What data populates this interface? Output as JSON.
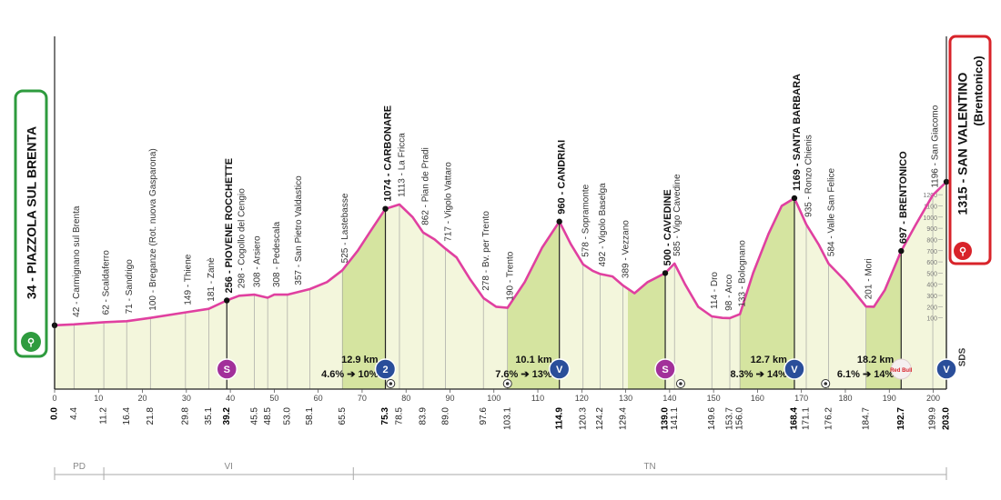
{
  "chart_data": {
    "type": "area",
    "title": "",
    "xlabel": "",
    "ylabel": "",
    "xlim": [
      0,
      203
    ],
    "ylim": [
      0,
      1315
    ],
    "colors": {
      "profile_fill": "#f3f6dc",
      "climb_fill": "#d5e4a0",
      "profile_line": "#e040a0",
      "start_green": "#2e9b3e",
      "finish_red": "#d8232a",
      "marker_purple": "#a2309a",
      "marker_blue": "#2a4e9a"
    },
    "start": {
      "label": "34 - PIAZZOLA SUL BRENTA",
      "km": 0,
      "alt": 34
    },
    "finish": {
      "label": "1315 - SAN VALENTINO",
      "sublabel": "(Brentonico)",
      "km": 203,
      "alt": 1315
    },
    "profile": [
      [
        0,
        34
      ],
      [
        4.4,
        42
      ],
      [
        11.2,
        62
      ],
      [
        16.4,
        71
      ],
      [
        21.8,
        100
      ],
      [
        29.8,
        149
      ],
      [
        35.1,
        181
      ],
      [
        39.2,
        256
      ],
      [
        42,
        298
      ],
      [
        45.5,
        308
      ],
      [
        48.5,
        280
      ],
      [
        50,
        308
      ],
      [
        53,
        308
      ],
      [
        58.1,
        357
      ],
      [
        62,
        420
      ],
      [
        65.5,
        525
      ],
      [
        69,
        700
      ],
      [
        72,
        880
      ],
      [
        75.3,
        1074
      ],
      [
        78.5,
        1113
      ],
      [
        81.5,
        1000
      ],
      [
        83.9,
        862
      ],
      [
        86.5,
        800
      ],
      [
        89,
        717
      ],
      [
        91.5,
        640
      ],
      [
        94.5,
        450
      ],
      [
        97.6,
        278
      ],
      [
        100.5,
        200
      ],
      [
        103.1,
        190
      ],
      [
        107,
        420
      ],
      [
        111,
        730
      ],
      [
        114.9,
        960
      ],
      [
        117.5,
        760
      ],
      [
        120.3,
        578
      ],
      [
        122.5,
        520
      ],
      [
        124.2,
        492
      ],
      [
        127,
        470
      ],
      [
        129.4,
        389
      ],
      [
        132,
        320
      ],
      [
        135,
        420
      ],
      [
        139,
        500
      ],
      [
        141.1,
        585
      ],
      [
        143.5,
        400
      ],
      [
        146.5,
        200
      ],
      [
        149.6,
        114
      ],
      [
        152,
        100
      ],
      [
        153.7,
        98
      ],
      [
        156,
        133
      ],
      [
        159,
        500
      ],
      [
        162.5,
        850
      ],
      [
        165.5,
        1100
      ],
      [
        168.4,
        1169
      ],
      [
        171.1,
        935
      ],
      [
        174,
        750
      ],
      [
        176.2,
        584
      ],
      [
        180,
        430
      ],
      [
        184.7,
        201
      ],
      [
        186.5,
        200
      ],
      [
        189,
        350
      ],
      [
        192.7,
        697
      ],
      [
        196,
        930
      ],
      [
        199.9,
        1196
      ],
      [
        203,
        1315
      ]
    ],
    "climb_segments": [
      [
        65.5,
        75.3
      ],
      [
        103.1,
        114.9
      ],
      [
        130.5,
        139
      ],
      [
        156,
        168.4
      ],
      [
        184.7,
        192.7
      ]
    ],
    "peak_labels": [
      {
        "km": 0,
        "alt": 34,
        "text": "34 - PIAZZOLA SUL BRENTA",
        "bold": true
      },
      {
        "km": 4.4,
        "alt": 42,
        "text": "42 - Carmignano sul Brenta"
      },
      {
        "km": 11.2,
        "alt": 62,
        "text": "62 - Scaldaferro"
      },
      {
        "km": 16.4,
        "alt": 71,
        "text": "71 - Sandrigo"
      },
      {
        "km": 21.8,
        "alt": 100,
        "text": "100 - Breganze (Rot. nuova Gasparona)"
      },
      {
        "km": 29.8,
        "alt": 149,
        "text": "149 - Thiene"
      },
      {
        "km": 35.1,
        "alt": 181,
        "text": "181 - Zanè"
      },
      {
        "km": 39.2,
        "alt": 256,
        "text": "256 - PIOVENE ROCCHETTE",
        "bold": true
      },
      {
        "km": 42,
        "alt": 298,
        "text": "298 - Cogollo del Cengio"
      },
      {
        "km": 45.5,
        "alt": 308,
        "text": "308 - Arsiero"
      },
      {
        "km": 50,
        "alt": 308,
        "text": "308 - Pedescala"
      },
      {
        "km": 55,
        "alt": 357,
        "text": "357 - San Pietro Valdastico"
      },
      {
        "km": 65.5,
        "alt": 525,
        "text": "525 - Lastebasse"
      },
      {
        "km": 75.3,
        "alt": 1074,
        "text": "1074 - CARBONARE",
        "bold": true
      },
      {
        "km": 78.5,
        "alt": 1113,
        "text": "1113 - La Fricca"
      },
      {
        "km": 83.9,
        "alt": 862,
        "text": "862 - Pian de Pradi"
      },
      {
        "km": 89,
        "alt": 717,
        "text": "717 - Vigolo Vattaro"
      },
      {
        "km": 97.6,
        "alt": 278,
        "text": "278 - Bv. per Trento"
      },
      {
        "km": 103.1,
        "alt": 190,
        "text": "190 - Trento"
      },
      {
        "km": 114.9,
        "alt": 960,
        "text": "960 - CANDRIAI",
        "bold": true
      },
      {
        "km": 120.3,
        "alt": 578,
        "text": "578 - Sopramonte"
      },
      {
        "km": 124.2,
        "alt": 492,
        "text": "492 - Vigolo Baselga"
      },
      {
        "km": 129.4,
        "alt": 389,
        "text": "389 - Vezzano"
      },
      {
        "km": 139,
        "alt": 500,
        "text": "500 - CAVEDINE",
        "bold": true
      },
      {
        "km": 141.1,
        "alt": 585,
        "text": "585 - Vigo Cavedine"
      },
      {
        "km": 149.6,
        "alt": 114,
        "text": "114 - Dro"
      },
      {
        "km": 153,
        "alt": 98,
        "text": "98 - Arco"
      },
      {
        "km": 156,
        "alt": 133,
        "text": "133 - Bolognano"
      },
      {
        "km": 168.4,
        "alt": 1169,
        "text": "1169 - SANTA BARBARA",
        "bold": true
      },
      {
        "km": 171.1,
        "alt": 935,
        "text": "935 - Ronzo Chienis"
      },
      {
        "km": 176.2,
        "alt": 584,
        "text": "584 - Valle San Felice"
      },
      {
        "km": 184.7,
        "alt": 201,
        "text": "201 - Mori"
      },
      {
        "km": 192.7,
        "alt": 697,
        "text": "697 - BRENTONICO",
        "bold": true
      },
      {
        "km": 199.9,
        "alt": 1196,
        "text": "1196 - San Giacomo"
      },
      {
        "km": 203,
        "alt": 1315,
        "text": "1315 - SAN VALENTINO",
        "sub": "(Brentonico)",
        "bold": true
      }
    ],
    "axis_ticks": [
      0,
      10,
      20,
      30,
      40,
      50,
      60,
      70,
      80,
      90,
      100,
      110,
      120,
      130,
      140,
      150,
      160,
      170,
      180,
      190,
      200
    ],
    "km_marks": [
      {
        "km": 0,
        "text": "0.0",
        "bold": true
      },
      {
        "km": 4.4,
        "text": "4.4"
      },
      {
        "km": 11.2,
        "text": "11.2"
      },
      {
        "km": 16.4,
        "text": "16.4"
      },
      {
        "km": 21.8,
        "text": "21.8"
      },
      {
        "km": 29.8,
        "text": "29.8"
      },
      {
        "km": 35.1,
        "text": "35.1"
      },
      {
        "km": 39.2,
        "text": "39.2",
        "bold": true
      },
      {
        "km": 45.5,
        "text": "45.5"
      },
      {
        "km": 48.5,
        "text": "48.5"
      },
      {
        "km": 53,
        "text": "53.0"
      },
      {
        "km": 58.1,
        "text": "58.1"
      },
      {
        "km": 65.5,
        "text": "65.5"
      },
      {
        "km": 75.3,
        "text": "75.3",
        "bold": true
      },
      {
        "km": 78.5,
        "text": "78.5"
      },
      {
        "km": 83.9,
        "text": "83.9"
      },
      {
        "km": 89,
        "text": "89.0"
      },
      {
        "km": 97.6,
        "text": "97.6"
      },
      {
        "km": 103.1,
        "text": "103.1"
      },
      {
        "km": 114.9,
        "text": "114.9",
        "bold": true
      },
      {
        "km": 120.3,
        "text": "120.3"
      },
      {
        "km": 124.2,
        "text": "124.2"
      },
      {
        "km": 129.4,
        "text": "129.4"
      },
      {
        "km": 139,
        "text": "139.0",
        "bold": true
      },
      {
        "km": 141.1,
        "text": "141.1"
      },
      {
        "km": 149.6,
        "text": "149.6"
      },
      {
        "km": 153.7,
        "text": "153.7"
      },
      {
        "km": 156,
        "text": "156.0"
      },
      {
        "km": 168.4,
        "text": "168.4",
        "bold": true
      },
      {
        "km": 171.1,
        "text": "171.1"
      },
      {
        "km": 176.2,
        "text": "176.2"
      },
      {
        "km": 184.7,
        "text": "184.7"
      },
      {
        "km": 192.7,
        "text": "192.7",
        "bold": true
      },
      {
        "km": 199.9,
        "text": "199.9"
      },
      {
        "km": 203,
        "text": "203.0",
        "bold": true
      }
    ],
    "climb_stats": [
      {
        "km": 75.3,
        "dist": "12.9 km",
        "grad": "4.6%",
        "max": "10%"
      },
      {
        "km": 114.9,
        "dist": "10.1 km",
        "grad": "7.6%",
        "max": "13%"
      },
      {
        "km": 168.4,
        "dist": "12.7 km",
        "grad": "8.3%",
        "max": "14%"
      },
      {
        "km": 192.7,
        "dist": "18.2 km",
        "grad": "6.1%",
        "max": "14%"
      }
    ],
    "markers": [
      {
        "km": 39.2,
        "kind": "sprint",
        "text": "S",
        "color": "#a2309a"
      },
      {
        "km": 75.3,
        "kind": "kom",
        "text": "2",
        "color": "#2a4e9a"
      },
      {
        "km": 114.9,
        "kind": "kom",
        "text": "V",
        "color": "#2a4e9a"
      },
      {
        "km": 139,
        "kind": "sprint",
        "text": "S",
        "color": "#a2309a"
      },
      {
        "km": 168.4,
        "kind": "kom",
        "text": "V",
        "color": "#2a4e9a"
      },
      {
        "km": 192.7,
        "kind": "redbull",
        "text": "Red Bull",
        "color": "#d8232a"
      },
      {
        "km": 203,
        "kind": "kom",
        "text": "V",
        "color": "#2a4e9a"
      }
    ],
    "feed_zones": [
      76.5,
      103.1,
      142.5,
      175.5
    ],
    "sds_label": "SDS",
    "altitude_scale": [
      100,
      200,
      300,
      400,
      500,
      600,
      700,
      800,
      900,
      1000,
      1100,
      1200
    ],
    "regions": [
      {
        "from": 0,
        "to": 11.2,
        "text": "PD"
      },
      {
        "from": 11.2,
        "to": 68,
        "text": "VI"
      },
      {
        "from": 68,
        "to": 203,
        "text": "TN"
      }
    ]
  }
}
